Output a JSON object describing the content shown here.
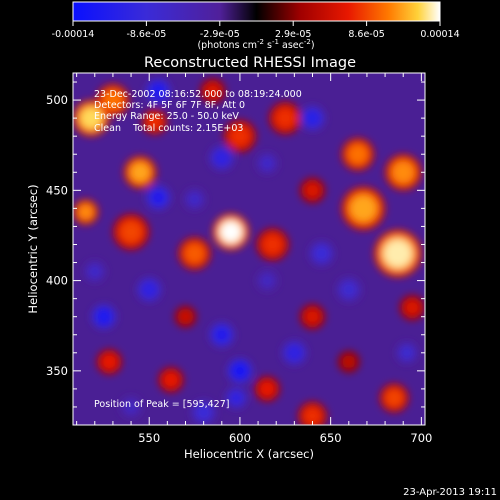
{
  "chart_data": {
    "type": "heatmap",
    "title": "Reconstructed RHESSI Image",
    "xlabel": "Heliocentric X (arcsec)",
    "ylabel": "Heliocentric Y (arcsec)",
    "xlim": [
      508,
      702
    ],
    "ylim": [
      320,
      515
    ],
    "x_ticks": [
      550,
      600,
      650,
      700
    ],
    "y_ticks": [
      350,
      400,
      450,
      500
    ],
    "colorbar": {
      "ticks": [
        "-0.00014",
        "-8.6e-05",
        "-2.9e-05",
        "2.9e-05",
        "8.6e-05",
        "0.00014"
      ],
      "range": [
        -0.00014,
        0.00014
      ],
      "units_text": "(photons cm",
      "units_exp1": "-2",
      "units_mid": " s",
      "units_exp2": "-1",
      "units_end": " asec",
      "units_exp3": "-2",
      "units_close": ")"
    },
    "annotations": [
      "23-Dec-2002 08:16:52.000 to 08:19:24.000",
      "Detectors: 4F 5F 6F 7F 8F, Att 0",
      "Energy Range: 25.0 - 50.0 keV",
      "Clean    Total counts: 2.15E+03"
    ],
    "peak_label": "Position of Peak = [595,427]",
    "peak": [
      595,
      427
    ],
    "blobs": [
      {
        "x": 595,
        "y": 427,
        "v": 1.0,
        "r": 10
      },
      {
        "x": 687,
        "y": 415,
        "v": 0.95,
        "r": 13
      },
      {
        "x": 668,
        "y": 440,
        "v": 0.8,
        "r": 12
      },
      {
        "x": 690,
        "y": 460,
        "v": 0.75,
        "r": 10
      },
      {
        "x": 665,
        "y": 470,
        "v": 0.7,
        "r": 9
      },
      {
        "x": 518,
        "y": 490,
        "v": 0.9,
        "r": 10
      },
      {
        "x": 530,
        "y": 500,
        "v": 0.7,
        "r": 9
      },
      {
        "x": 545,
        "y": 460,
        "v": 0.8,
        "r": 9
      },
      {
        "x": 515,
        "y": 438,
        "v": 0.75,
        "r": 7
      },
      {
        "x": 575,
        "y": 415,
        "v": 0.65,
        "r": 9
      },
      {
        "x": 618,
        "y": 420,
        "v": 0.55,
        "r": 9
      },
      {
        "x": 540,
        "y": 427,
        "v": 0.6,
        "r": 10
      },
      {
        "x": 625,
        "y": 490,
        "v": 0.55,
        "r": 9
      },
      {
        "x": 600,
        "y": 480,
        "v": 0.55,
        "r": 9
      },
      {
        "x": 585,
        "y": 505,
        "v": 0.45,
        "r": 7
      },
      {
        "x": 640,
        "y": 450,
        "v": 0.45,
        "r": 7
      },
      {
        "x": 553,
        "y": 488,
        "v": 0.55,
        "r": 7
      },
      {
        "x": 562,
        "y": 345,
        "v": 0.5,
        "r": 7
      },
      {
        "x": 528,
        "y": 355,
        "v": 0.5,
        "r": 7
      },
      {
        "x": 685,
        "y": 335,
        "v": 0.6,
        "r": 8
      },
      {
        "x": 640,
        "y": 325,
        "v": 0.55,
        "r": 8
      },
      {
        "x": 615,
        "y": 340,
        "v": 0.5,
        "r": 7
      },
      {
        "x": 640,
        "y": 380,
        "v": 0.45,
        "r": 7
      },
      {
        "x": 695,
        "y": 385,
        "v": 0.45,
        "r": 7
      },
      {
        "x": 570,
        "y": 380,
        "v": 0.4,
        "r": 6
      },
      {
        "x": 660,
        "y": 355,
        "v": 0.35,
        "r": 6
      },
      {
        "x": 555,
        "y": 505,
        "v": -0.85,
        "r": 7
      },
      {
        "x": 555,
        "y": 446,
        "v": -0.8,
        "r": 7
      },
      {
        "x": 525,
        "y": 380,
        "v": -0.85,
        "r": 7
      },
      {
        "x": 550,
        "y": 395,
        "v": -0.7,
        "r": 7
      },
      {
        "x": 590,
        "y": 370,
        "v": -0.8,
        "r": 7
      },
      {
        "x": 600,
        "y": 350,
        "v": -0.9,
        "r": 7
      },
      {
        "x": 598,
        "y": 335,
        "v": -0.7,
        "r": 6
      },
      {
        "x": 645,
        "y": 415,
        "v": -0.6,
        "r": 7
      },
      {
        "x": 640,
        "y": 490,
        "v": -0.75,
        "r": 7
      },
      {
        "x": 590,
        "y": 468,
        "v": -0.7,
        "r": 7
      },
      {
        "x": 630,
        "y": 360,
        "v": -0.7,
        "r": 7
      },
      {
        "x": 660,
        "y": 395,
        "v": -0.55,
        "r": 7
      },
      {
        "x": 580,
        "y": 327,
        "v": -0.6,
        "r": 7
      },
      {
        "x": 615,
        "y": 465,
        "v": -0.5,
        "r": 6
      },
      {
        "x": 575,
        "y": 445,
        "v": -0.5,
        "r": 6
      },
      {
        "x": 692,
        "y": 360,
        "v": -0.55,
        "r": 6
      },
      {
        "x": 615,
        "y": 400,
        "v": -0.45,
        "r": 6
      },
      {
        "x": 520,
        "y": 405,
        "v": -0.5,
        "r": 6
      },
      {
        "x": 540,
        "y": 330,
        "v": -0.45,
        "r": 6
      }
    ]
  },
  "footer": {
    "timestamp": "23-Apr-2013 19:11"
  }
}
